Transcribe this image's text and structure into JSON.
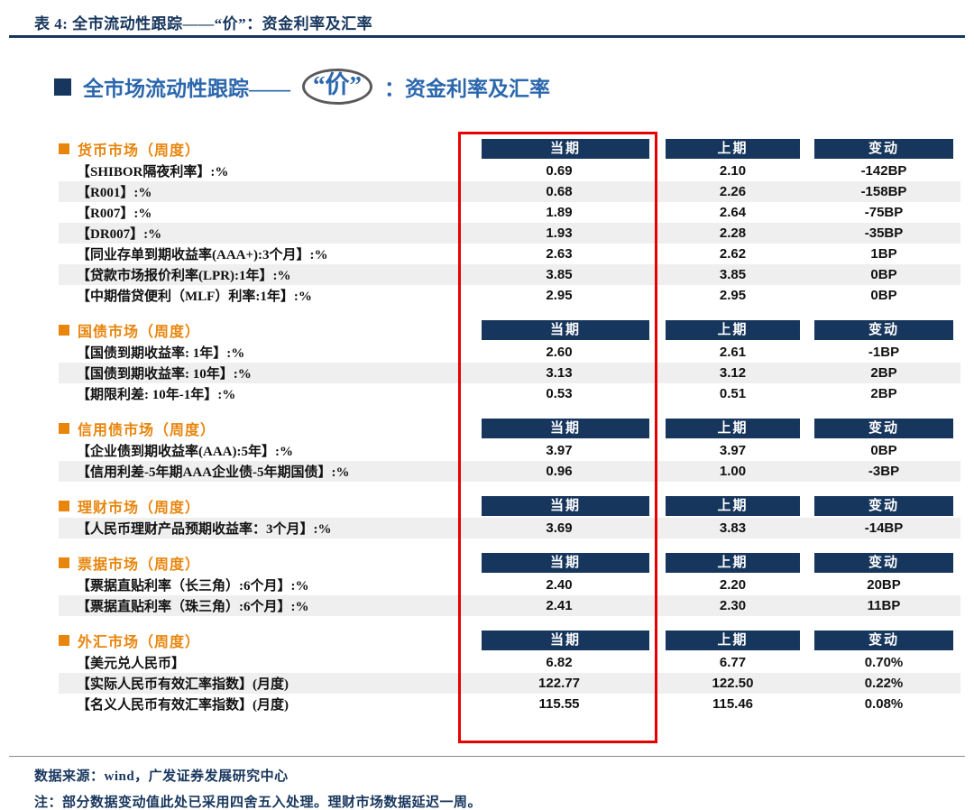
{
  "colors": {
    "navy": "#17365D",
    "heading_blue": "#2B67AD",
    "section_orange": "#E8850C",
    "highlight_red": "#E60000",
    "stripe_gray": "#EFEFEF"
  },
  "caption": "表 4:  全市流动性跟踪——“价”：资金利率及汇率",
  "heading": {
    "prefix": "全市场流动性跟踪——",
    "circled": "“价”",
    "suffix": "：资金利率及汇率"
  },
  "columns": [
    "当期",
    "上期",
    "变动"
  ],
  "sections": [
    {
      "title": "货币市场（周度）",
      "rows": [
        {
          "label": "【SHIBOR隔夜利率】:%",
          "current": "0.69",
          "previous": "2.10",
          "change": "-142BP",
          "shaded": false
        },
        {
          "label": "【R001】:%",
          "current": "0.68",
          "previous": "2.26",
          "change": "-158BP",
          "shaded": true
        },
        {
          "label": "【R007】:%",
          "current": "1.89",
          "previous": "2.64",
          "change": "-75BP",
          "shaded": false
        },
        {
          "label": "【DR007】:%",
          "current": "1.93",
          "previous": "2.28",
          "change": "-35BP",
          "shaded": true
        },
        {
          "label": "【同业存单到期收益率(AAA+):3个月】:%",
          "current": "2.63",
          "previous": "2.62",
          "change": "1BP",
          "shaded": false
        },
        {
          "label": "【贷款市场报价利率(LPR):1年】:%",
          "current": "3.85",
          "previous": "3.85",
          "change": "0BP",
          "shaded": true
        },
        {
          "label": "【中期借贷便利（MLF）利率:1年】:%",
          "current": "2.95",
          "previous": "2.95",
          "change": "0BP",
          "shaded": false
        }
      ]
    },
    {
      "title": "国债市场（周度）",
      "rows": [
        {
          "label": "【国债到期收益率: 1年】:%",
          "current": "2.60",
          "previous": "2.61",
          "change": "-1BP",
          "shaded": false
        },
        {
          "label": "【国债到期收益率: 10年】:%",
          "current": "3.13",
          "previous": "3.12",
          "change": "2BP",
          "shaded": true
        },
        {
          "label": "【期限利差: 10年-1年】:%",
          "current": "0.53",
          "previous": "0.51",
          "change": "2BP",
          "shaded": false
        }
      ]
    },
    {
      "title": "信用债市场（周度）",
      "rows": [
        {
          "label": "【企业债到期收益率(AAA):5年】:%",
          "current": "3.97",
          "previous": "3.97",
          "change": "0BP",
          "shaded": false
        },
        {
          "label": "【信用利差-5年期AAA企业债-5年期国债】:%",
          "current": "0.96",
          "previous": "1.00",
          "change": "-3BP",
          "shaded": true
        }
      ]
    },
    {
      "title": "理财市场（周度）",
      "rows": [
        {
          "label": "【人民币理财产品预期收益率：3个月】:%",
          "current": "3.69",
          "previous": "3.83",
          "change": "-14BP",
          "shaded": true
        }
      ]
    },
    {
      "title": "票据市场（周度）",
      "rows": [
        {
          "label": "【票据直贴利率（长三角）:6个月】:%",
          "current": "2.40",
          "previous": "2.20",
          "change": "20BP",
          "shaded": false
        },
        {
          "label": "【票据直贴利率（珠三角）:6个月】:%",
          "current": "2.41",
          "previous": "2.30",
          "change": "11BP",
          "shaded": true
        }
      ]
    },
    {
      "title": "外汇市场（周度）",
      "rows": [
        {
          "label": "【美元兑人民币】",
          "current": "6.82",
          "previous": "6.77",
          "change": "0.70%",
          "shaded": false
        },
        {
          "label": "【实际人民币有效汇率指数】(月度)",
          "current": "122.77",
          "previous": "122.50",
          "change": "0.22%",
          "shaded": true
        },
        {
          "label": "【名义人民币有效汇率指数】(月度)",
          "current": "115.55",
          "previous": "115.46",
          "change": "0.08%",
          "shaded": false
        }
      ]
    }
  ],
  "footer": {
    "source": "数据来源：wind，广发证券发展研究中心",
    "note": "注：部分数据变动值此处已采用四舍五入处理。理财市场数据延迟一周。"
  }
}
